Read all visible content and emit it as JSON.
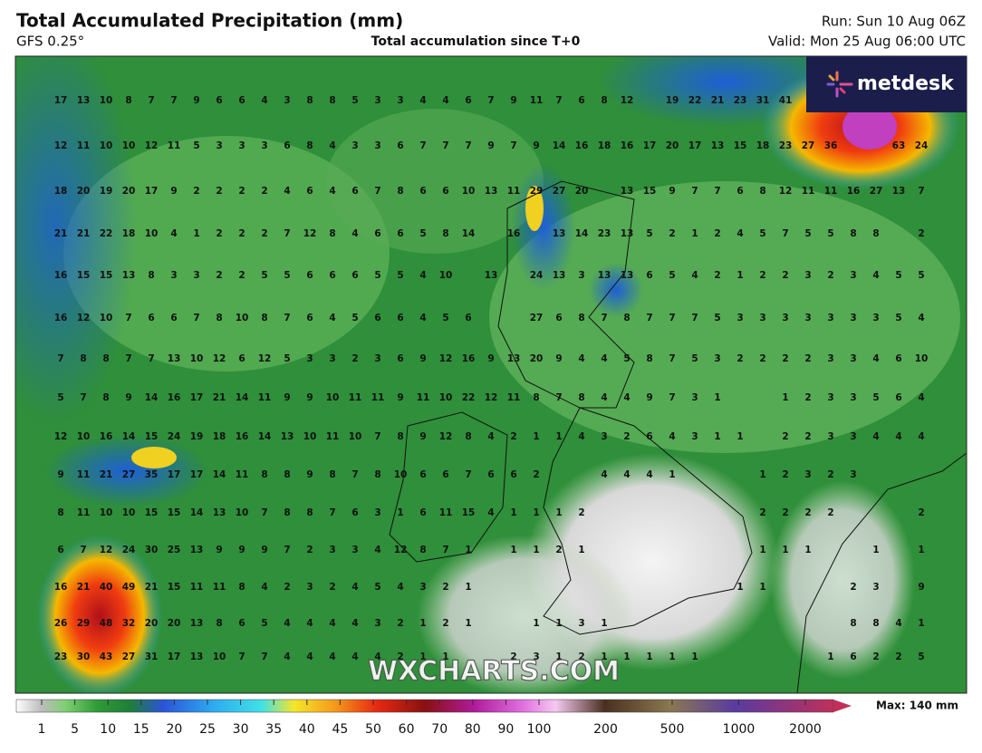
{
  "header": {
    "title": "Total Accumulated Precipitation (mm)",
    "model": "GFS 0.25°",
    "subtitle": "Total accumulation since T+0",
    "run": "Run: Sun 10 Aug 06Z",
    "valid": "Valid: Mon 25 Aug 06:00 UTC"
  },
  "logo": "metdesk",
  "watermark": "WXCHARTS.COM",
  "grid": {
    "rows": [
      [
        17,
        13,
        10,
        8,
        7,
        7,
        9,
        6,
        6,
        4,
        3,
        8,
        8,
        5,
        3,
        3,
        4,
        4,
        6,
        7,
        9,
        11,
        7,
        6,
        8,
        12,
        null,
        19,
        22,
        21,
        23,
        31,
        41,
        null,
        null,
        null,
        null,
        null,
        null
      ],
      [
        12,
        11,
        10,
        10,
        12,
        11,
        5,
        3,
        3,
        3,
        6,
        8,
        4,
        3,
        3,
        6,
        7,
        7,
        7,
        9,
        7,
        9,
        14,
        16,
        18,
        16,
        17,
        20,
        17,
        13,
        15,
        18,
        23,
        27,
        36,
        null,
        null,
        63,
        24
      ],
      [
        18,
        20,
        19,
        20,
        17,
        9,
        2,
        2,
        2,
        2,
        4,
        6,
        4,
        6,
        7,
        8,
        6,
        6,
        10,
        13,
        11,
        29,
        27,
        20,
        null,
        13,
        15,
        9,
        7,
        7,
        6,
        8,
        12,
        11,
        11,
        16,
        27,
        13,
        7
      ],
      [
        21,
        21,
        22,
        18,
        10,
        4,
        1,
        2,
        2,
        2,
        7,
        12,
        8,
        4,
        6,
        6,
        5,
        8,
        14,
        null,
        16,
        null,
        13,
        14,
        23,
        13,
        5,
        2,
        1,
        2,
        4,
        5,
        7,
        5,
        5,
        8,
        8,
        null,
        2
      ],
      [
        16,
        15,
        15,
        13,
        8,
        3,
        3,
        2,
        2,
        5,
        5,
        6,
        6,
        6,
        5,
        5,
        4,
        10,
        null,
        13,
        null,
        24,
        13,
        3,
        13,
        13,
        6,
        5,
        4,
        2,
        1,
        2,
        2,
        3,
        2,
        3,
        4,
        5,
        5
      ],
      [
        16,
        12,
        10,
        7,
        6,
        6,
        7,
        8,
        10,
        8,
        7,
        6,
        4,
        5,
        6,
        6,
        4,
        5,
        6,
        null,
        null,
        27,
        6,
        8,
        7,
        8,
        7,
        7,
        7,
        5,
        3,
        3,
        3,
        3,
        3,
        3,
        3,
        5,
        4
      ],
      [
        7,
        8,
        8,
        7,
        7,
        13,
        10,
        12,
        6,
        12,
        5,
        3,
        3,
        2,
        3,
        6,
        9,
        12,
        16,
        9,
        13,
        20,
        9,
        4,
        4,
        5,
        8,
        7,
        5,
        3,
        2,
        2,
        2,
        2,
        3,
        3,
        4,
        6,
        10
      ],
      [
        5,
        7,
        8,
        9,
        14,
        16,
        17,
        21,
        14,
        11,
        9,
        9,
        10,
        11,
        11,
        9,
        11,
        10,
        22,
        12,
        11,
        8,
        7,
        8,
        4,
        4,
        9,
        7,
        3,
        1,
        null,
        null,
        1,
        2,
        3,
        3,
        5,
        6,
        4
      ],
      [
        12,
        10,
        16,
        14,
        15,
        24,
        19,
        18,
        16,
        14,
        13,
        10,
        11,
        10,
        7,
        8,
        9,
        12,
        8,
        4,
        2,
        1,
        1,
        4,
        3,
        2,
        6,
        4,
        3,
        1,
        1,
        null,
        2,
        2,
        3,
        3,
        4,
        4,
        4
      ],
      [
        9,
        11,
        21,
        27,
        35,
        17,
        17,
        14,
        11,
        8,
        8,
        9,
        8,
        7,
        8,
        10,
        6,
        6,
        7,
        6,
        6,
        2,
        null,
        null,
        4,
        4,
        4,
        1,
        null,
        null,
        null,
        1,
        2,
        3,
        2,
        3,
        null,
        null,
        null
      ],
      [
        8,
        11,
        10,
        10,
        15,
        15,
        14,
        13,
        10,
        7,
        8,
        8,
        7,
        6,
        3,
        1,
        6,
        11,
        15,
        4,
        1,
        1,
        1,
        2,
        null,
        null,
        null,
        null,
        null,
        null,
        null,
        2,
        2,
        2,
        2,
        null,
        null,
        null,
        2
      ],
      [
        6,
        7,
        12,
        24,
        30,
        25,
        13,
        9,
        9,
        9,
        7,
        2,
        3,
        3,
        4,
        12,
        8,
        7,
        1,
        null,
        1,
        1,
        2,
        1,
        null,
        null,
        null,
        null,
        null,
        null,
        null,
        1,
        1,
        1,
        null,
        null,
        1,
        null,
        1
      ],
      [
        16,
        21,
        40,
        49,
        21,
        15,
        11,
        11,
        8,
        4,
        2,
        3,
        2,
        4,
        5,
        4,
        3,
        2,
        1,
        null,
        null,
        null,
        null,
        null,
        null,
        null,
        null,
        null,
        null,
        null,
        1,
        1,
        null,
        null,
        null,
        2,
        3,
        null,
        9
      ],
      [
        26,
        29,
        48,
        32,
        20,
        20,
        13,
        8,
        6,
        5,
        4,
        4,
        4,
        4,
        3,
        2,
        1,
        2,
        1,
        null,
        null,
        1,
        1,
        3,
        1,
        null,
        null,
        null,
        null,
        null,
        null,
        null,
        null,
        null,
        null,
        8,
        8,
        4,
        1
      ],
      [
        23,
        30,
        43,
        27,
        31,
        17,
        13,
        10,
        7,
        7,
        4,
        4,
        4,
        4,
        4,
        2,
        1,
        1,
        null,
        null,
        2,
        3,
        1,
        2,
        1,
        1,
        1,
        1,
        1,
        null,
        null,
        null,
        null,
        null,
        1,
        6,
        2,
        2,
        5
      ]
    ]
  },
  "legend": {
    "ticks": [
      1,
      5,
      10,
      15,
      20,
      25,
      30,
      35,
      40,
      45,
      50,
      60,
      70,
      80,
      90,
      100,
      200,
      500,
      1000,
      2000
    ],
    "max_label": "Max: 140 mm"
  }
}
